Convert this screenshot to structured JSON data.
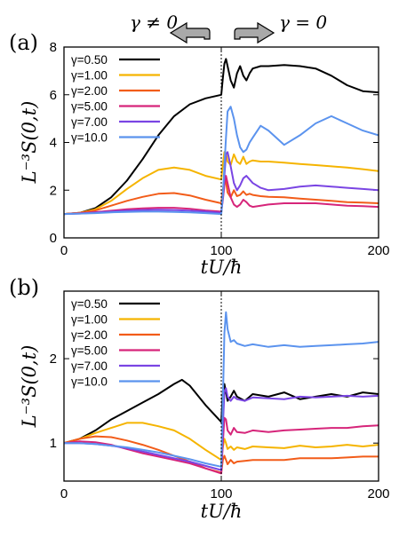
{
  "annotations": {
    "left_arrow_label": "γ ≠ 0",
    "right_arrow_label": "γ = 0"
  },
  "colors": {
    "series": [
      "#000000",
      "#f5b400",
      "#f25c19",
      "#d6257a",
      "#7a45e3",
      "#5b93ee"
    ],
    "arrow_fill": "#a9a9a9"
  },
  "chart_data": [
    {
      "type": "line",
      "panel_label": "(a)",
      "xlabel": "tU/ħ",
      "ylabel": "L⁻³S(0,t)",
      "xlim": [
        0,
        200
      ],
      "ylim": [
        0,
        8
      ],
      "xticks": [
        0,
        100,
        200
      ],
      "yticks": [
        0,
        2,
        4,
        6,
        8
      ],
      "vline_x": 100,
      "legend_position": "top-left",
      "series": [
        {
          "name": "γ=0.50",
          "x": [
            0,
            10,
            20,
            30,
            40,
            50,
            60,
            70,
            80,
            90,
            100,
            101,
            102,
            103,
            104,
            106,
            108,
            110,
            112,
            114,
            116,
            118,
            120,
            125,
            130,
            140,
            150,
            160,
            170,
            180,
            190,
            200
          ],
          "values": [
            1.0,
            1.05,
            1.25,
            1.7,
            2.4,
            3.3,
            4.3,
            5.1,
            5.6,
            5.85,
            6.0,
            6.7,
            7.3,
            7.5,
            7.2,
            6.6,
            6.3,
            6.9,
            7.2,
            6.8,
            6.6,
            6.9,
            7.1,
            7.2,
            7.2,
            7.25,
            7.2,
            7.1,
            6.8,
            6.4,
            6.15,
            6.1
          ]
        },
        {
          "name": "γ=1.00",
          "x": [
            0,
            10,
            20,
            30,
            40,
            50,
            60,
            70,
            80,
            90,
            100,
            101,
            102,
            103,
            104,
            106,
            108,
            110,
            112,
            114,
            116,
            118,
            120,
            125,
            130,
            140,
            150,
            160,
            170,
            180,
            190,
            200
          ],
          "values": [
            1.0,
            1.05,
            1.2,
            1.55,
            2.05,
            2.5,
            2.85,
            2.95,
            2.85,
            2.6,
            2.45,
            3.1,
            3.6,
            3.55,
            3.2,
            3.05,
            3.5,
            3.2,
            3.1,
            3.4,
            3.1,
            3.2,
            3.25,
            3.2,
            3.2,
            3.15,
            3.1,
            3.05,
            3.0,
            2.95,
            2.88,
            2.8
          ]
        },
        {
          "name": "γ=2.00",
          "x": [
            0,
            10,
            20,
            30,
            40,
            50,
            60,
            70,
            80,
            90,
            100,
            101,
            102,
            103,
            104,
            106,
            108,
            110,
            112,
            114,
            116,
            118,
            120,
            125,
            130,
            140,
            150,
            160,
            170,
            180,
            190,
            200
          ],
          "values": [
            1.0,
            1.05,
            1.15,
            1.35,
            1.55,
            1.72,
            1.85,
            1.88,
            1.78,
            1.6,
            1.45,
            2.0,
            2.4,
            2.35,
            1.9,
            1.7,
            2.0,
            1.75,
            1.8,
            1.95,
            1.8,
            1.85,
            1.8,
            1.75,
            1.72,
            1.7,
            1.65,
            1.6,
            1.55,
            1.5,
            1.48,
            1.45
          ]
        },
        {
          "name": "γ=5.00",
          "x": [
            0,
            10,
            20,
            30,
            40,
            50,
            60,
            70,
            80,
            90,
            100,
            101,
            102,
            103,
            104,
            106,
            108,
            110,
            112,
            114,
            116,
            118,
            120,
            125,
            130,
            140,
            150,
            160,
            170,
            180,
            190,
            200
          ],
          "values": [
            1.0,
            1.03,
            1.08,
            1.14,
            1.2,
            1.24,
            1.26,
            1.26,
            1.22,
            1.15,
            1.1,
            1.6,
            2.2,
            2.6,
            2.3,
            1.7,
            1.4,
            1.3,
            1.4,
            1.6,
            1.5,
            1.35,
            1.3,
            1.35,
            1.4,
            1.45,
            1.45,
            1.45,
            1.4,
            1.35,
            1.33,
            1.3
          ]
        },
        {
          "name": "γ=7.00",
          "x": [
            0,
            10,
            20,
            30,
            40,
            50,
            60,
            70,
            80,
            90,
            100,
            101,
            102,
            103,
            104,
            106,
            108,
            110,
            112,
            114,
            116,
            118,
            120,
            125,
            130,
            140,
            150,
            160,
            170,
            180,
            190,
            200
          ],
          "values": [
            1.0,
            1.02,
            1.06,
            1.1,
            1.14,
            1.17,
            1.18,
            1.17,
            1.14,
            1.1,
            1.05,
            1.7,
            2.6,
            3.5,
            3.6,
            3.0,
            2.3,
            2.0,
            2.2,
            2.5,
            2.6,
            2.45,
            2.3,
            2.1,
            2.0,
            2.05,
            2.15,
            2.2,
            2.15,
            2.1,
            2.05,
            2.0
          ]
        },
        {
          "name": "γ=10.0",
          "x": [
            0,
            10,
            20,
            30,
            40,
            50,
            60,
            70,
            80,
            90,
            100,
            101,
            102,
            103,
            104,
            106,
            108,
            110,
            112,
            114,
            116,
            118,
            120,
            125,
            130,
            140,
            150,
            160,
            170,
            180,
            190,
            200
          ],
          "values": [
            1.0,
            1.02,
            1.04,
            1.07,
            1.09,
            1.1,
            1.1,
            1.09,
            1.07,
            1.04,
            1.0,
            1.8,
            3.0,
            4.2,
            5.3,
            5.5,
            5.0,
            4.3,
            3.8,
            3.6,
            3.7,
            4.0,
            4.2,
            4.7,
            4.5,
            3.9,
            4.3,
            4.8,
            5.1,
            4.8,
            4.5,
            4.3
          ]
        }
      ]
    },
    {
      "type": "line",
      "panel_label": "(b)",
      "xlabel": "tU/ħ",
      "ylabel": "L⁻³S(0,t)",
      "xlim": [
        0,
        200
      ],
      "ylim": [
        0.55,
        2.8
      ],
      "xticks": [
        0,
        100,
        200
      ],
      "yticks": [
        1,
        2
      ],
      "vline_x": 100,
      "legend_position": "top-left",
      "series": [
        {
          "name": "γ=0.50",
          "x": [
            0,
            10,
            20,
            30,
            40,
            50,
            60,
            70,
            75,
            80,
            90,
            100,
            101,
            102,
            103,
            104,
            106,
            108,
            110,
            115,
            120,
            130,
            140,
            150,
            160,
            170,
            180,
            190,
            200
          ],
          "values": [
            1.0,
            1.05,
            1.15,
            1.28,
            1.38,
            1.48,
            1.58,
            1.7,
            1.75,
            1.68,
            1.45,
            1.25,
            1.6,
            1.7,
            1.6,
            1.5,
            1.55,
            1.62,
            1.55,
            1.5,
            1.58,
            1.55,
            1.6,
            1.52,
            1.55,
            1.58,
            1.55,
            1.6,
            1.58
          ]
        },
        {
          "name": "γ=1.00",
          "x": [
            0,
            10,
            20,
            30,
            40,
            50,
            60,
            70,
            80,
            90,
            100,
            101,
            102,
            103,
            104,
            106,
            108,
            110,
            115,
            120,
            130,
            140,
            150,
            160,
            170,
            180,
            190,
            200
          ],
          "values": [
            1.0,
            1.05,
            1.12,
            1.18,
            1.24,
            1.24,
            1.2,
            1.15,
            1.05,
            0.92,
            0.8,
            0.95,
            1.05,
            1.0,
            0.93,
            0.96,
            0.92,
            0.95,
            0.93,
            0.96,
            0.95,
            0.94,
            0.97,
            0.95,
            0.96,
            0.98,
            0.96,
            0.98
          ]
        },
        {
          "name": "γ=2.00",
          "x": [
            0,
            10,
            20,
            30,
            40,
            50,
            60,
            70,
            80,
            90,
            100,
            101,
            102,
            103,
            104,
            106,
            108,
            110,
            115,
            120,
            130,
            140,
            150,
            160,
            170,
            180,
            190,
            200
          ],
          "values": [
            1.0,
            1.05,
            1.08,
            1.07,
            1.03,
            0.98,
            0.92,
            0.85,
            0.78,
            0.7,
            0.65,
            0.8,
            0.85,
            0.8,
            0.75,
            0.8,
            0.76,
            0.78,
            0.79,
            0.8,
            0.8,
            0.8,
            0.82,
            0.82,
            0.82,
            0.83,
            0.84,
            0.84
          ]
        },
        {
          "name": "γ=5.00",
          "x": [
            0,
            10,
            20,
            30,
            40,
            50,
            60,
            70,
            80,
            90,
            100,
            101,
            102,
            103,
            104,
            106,
            108,
            110,
            115,
            120,
            130,
            140,
            150,
            160,
            170,
            180,
            190,
            200
          ],
          "values": [
            1.0,
            1.02,
            1.01,
            0.98,
            0.93,
            0.88,
            0.84,
            0.8,
            0.76,
            0.7,
            0.64,
            1.0,
            1.3,
            1.28,
            1.15,
            1.1,
            1.18,
            1.13,
            1.12,
            1.15,
            1.13,
            1.15,
            1.16,
            1.17,
            1.18,
            1.18,
            1.2,
            1.21
          ]
        },
        {
          "name": "γ=7.00",
          "x": [
            0,
            10,
            20,
            30,
            40,
            50,
            60,
            70,
            80,
            90,
            100,
            101,
            102,
            103,
            104,
            106,
            108,
            110,
            115,
            120,
            130,
            140,
            150,
            160,
            170,
            180,
            190,
            200
          ],
          "values": [
            1.0,
            1.0,
            0.99,
            0.97,
            0.94,
            0.9,
            0.86,
            0.82,
            0.78,
            0.73,
            0.68,
            1.2,
            1.6,
            1.65,
            1.55,
            1.5,
            1.55,
            1.52,
            1.5,
            1.54,
            1.53,
            1.52,
            1.55,
            1.54,
            1.55,
            1.56,
            1.55,
            1.56
          ]
        },
        {
          "name": "γ=10.0",
          "x": [
            0,
            10,
            20,
            30,
            40,
            50,
            60,
            70,
            80,
            90,
            100,
            101,
            102,
            103,
            104,
            106,
            108,
            110,
            115,
            120,
            130,
            140,
            150,
            160,
            170,
            180,
            190,
            200
          ],
          "values": [
            1.0,
            1.0,
            0.99,
            0.97,
            0.95,
            0.92,
            0.89,
            0.85,
            0.81,
            0.76,
            0.72,
            1.5,
            2.3,
            2.55,
            2.35,
            2.2,
            2.22,
            2.18,
            2.15,
            2.17,
            2.14,
            2.16,
            2.14,
            2.15,
            2.16,
            2.17,
            2.18,
            2.2
          ]
        }
      ]
    }
  ]
}
